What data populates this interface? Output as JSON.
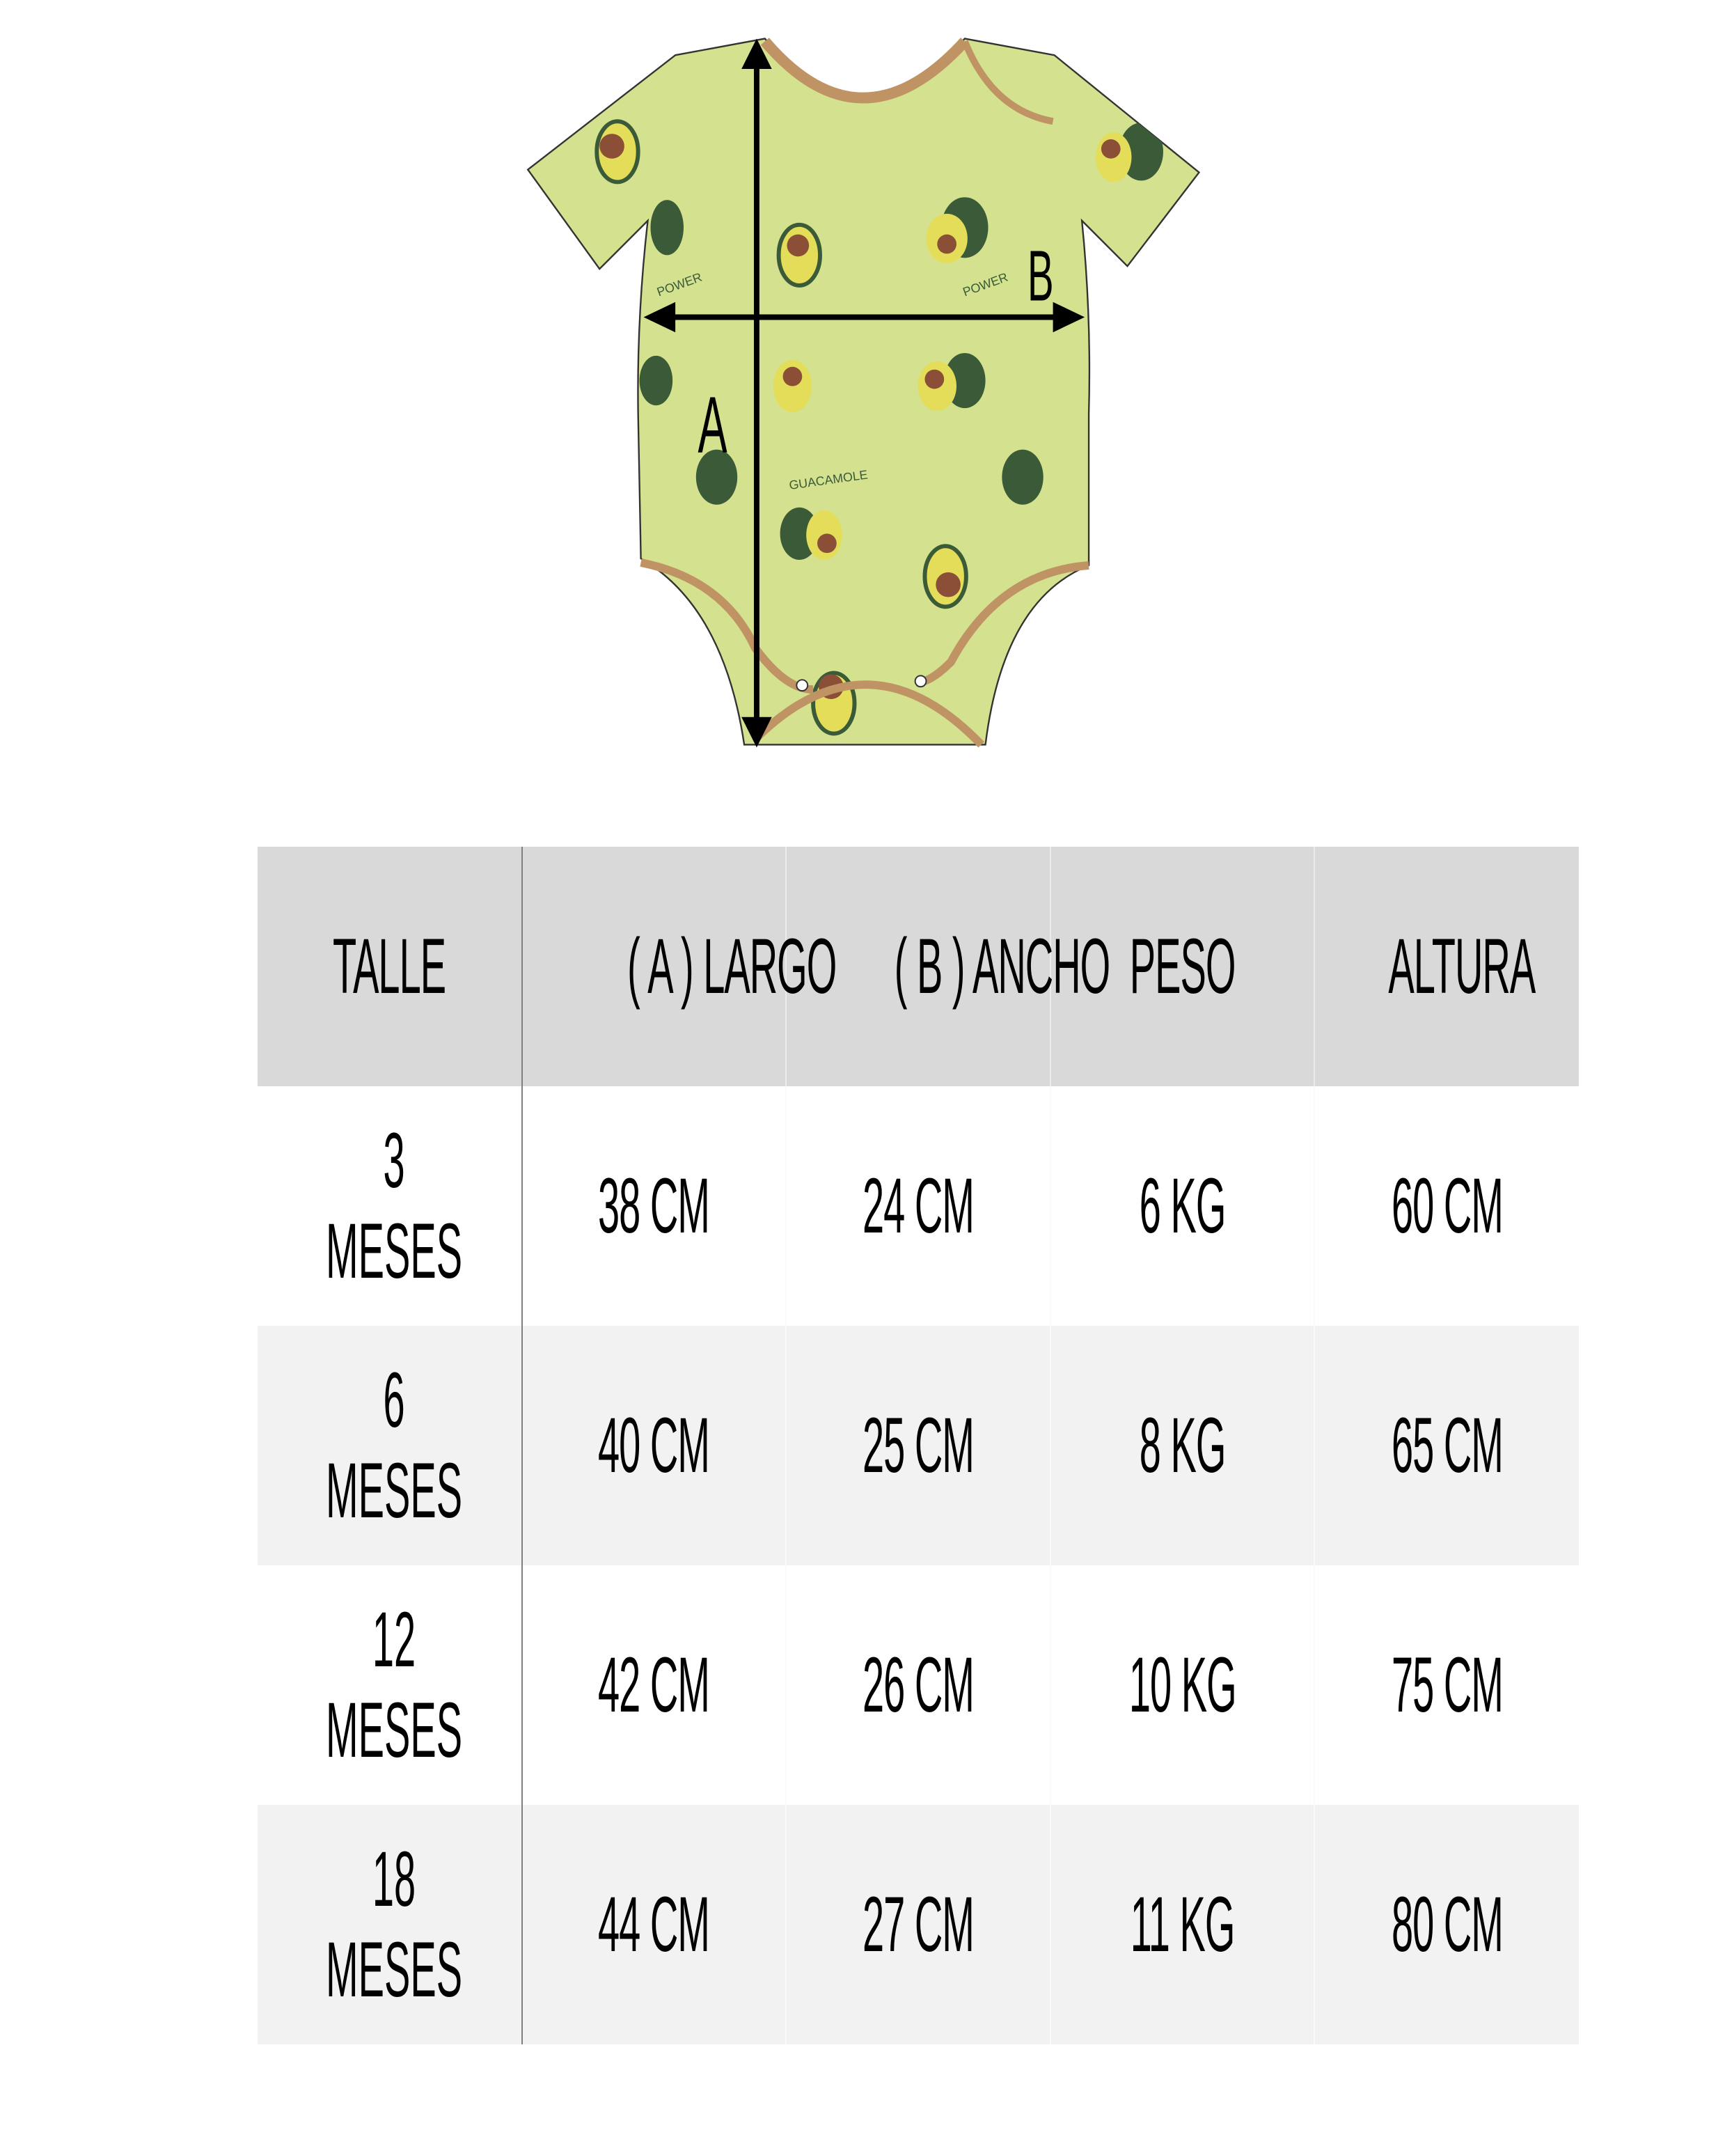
{
  "diagram": {
    "label_a": "A",
    "label_b": "B",
    "print_texts": [
      "POWER",
      "POWER",
      "GUACAMOLE"
    ],
    "colors": {
      "fabric": "#d4e290",
      "trim": "#bf9363",
      "avocado_dark": "#3b5b38",
      "avocado_flesh": "#e4dd5a",
      "pit": "#8b4f37"
    }
  },
  "table": {
    "headers": [
      "TALLE",
      "( A ) LARGO",
      "( B ) ANCHO",
      "PESO",
      "ALTURA"
    ],
    "rows": [
      {
        "talle_num": "3",
        "talle_unit": "MESES",
        "largo": "38 CM",
        "ancho": "24 CM",
        "peso": "6 KG",
        "altura": "60 CM"
      },
      {
        "talle_num": "6",
        "talle_unit": "MESES",
        "largo": "40 CM",
        "ancho": "25 CM",
        "peso": "8 KG",
        "altura": "65 CM"
      },
      {
        "talle_num": "12",
        "talle_unit": "MESES",
        "largo": "42 CM",
        "ancho": "26 CM",
        "peso": "10 KG",
        "altura": "75 CM"
      },
      {
        "talle_num": "18",
        "talle_unit": "MESES",
        "largo": "44 CM",
        "ancho": "27 CM",
        "peso": "11 KG",
        "altura": "80 CM"
      }
    ],
    "colors": {
      "header_bg": "#d9d9d9",
      "alt_row_bg": "#f2f2f2"
    }
  }
}
